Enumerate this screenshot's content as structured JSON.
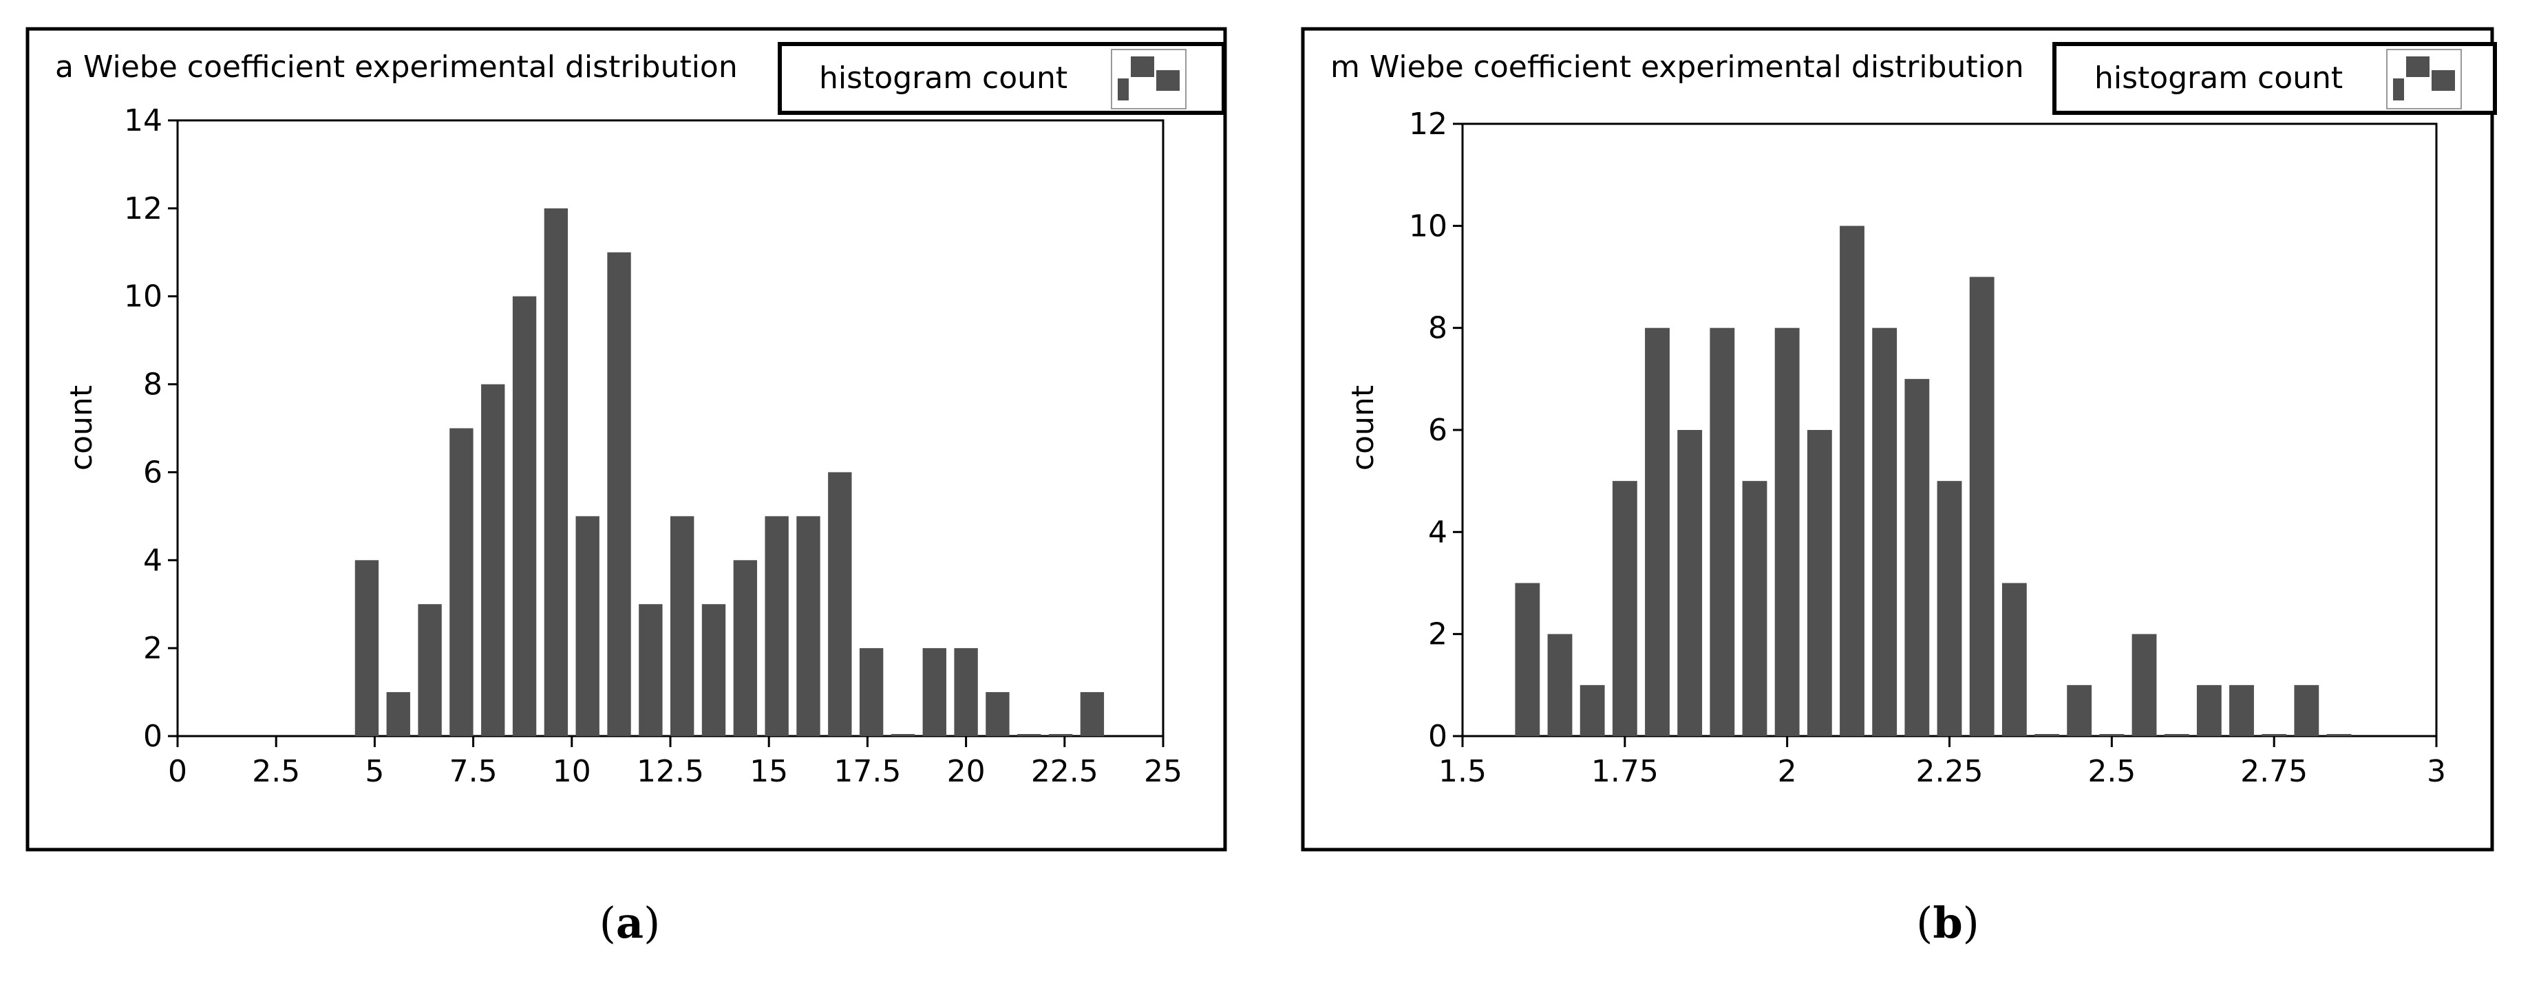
{
  "figure": {
    "panel_a_label": "a",
    "panel_b_label": "b"
  },
  "colors": {
    "bar": "#505050",
    "frame": "#000000",
    "text": "#000000"
  },
  "chart_data": [
    {
      "type": "bar",
      "title": "a Wiebe coefficient experimental distribution",
      "legend_label": "histogram count",
      "legend_icon": "histogram-icon",
      "ylabel": "count",
      "xlabel": "",
      "xlim": [
        0,
        25
      ],
      "ylim": [
        0,
        14
      ],
      "xticks": [
        0,
        2.5,
        5,
        7.5,
        10,
        12.5,
        15,
        17.5,
        20,
        22.5,
        25
      ],
      "xtick_labels": [
        "0",
        "2.5",
        "5",
        "7.5",
        "10",
        "12.5",
        "15",
        "17.5",
        "20",
        "22.5",
        "25"
      ],
      "yticks": [
        0,
        2,
        4,
        6,
        8,
        10,
        12,
        14
      ],
      "ytick_labels": [
        "0",
        "2",
        "4",
        "6",
        "8",
        "10",
        "12",
        "14"
      ],
      "bin_width": 0.8,
      "bar_width": 0.6,
      "x": [
        4.8,
        5.6,
        6.4,
        7.2,
        8.0,
        8.8,
        9.6,
        10.4,
        11.2,
        12.0,
        12.8,
        13.6,
        14.4,
        15.2,
        16.0,
        16.8,
        17.6,
        18.4,
        19.2,
        20.0,
        20.8,
        21.6,
        22.4,
        23.2
      ],
      "values": [
        4,
        1,
        3,
        7,
        8,
        10,
        12,
        5,
        11,
        3,
        5,
        3,
        4,
        5,
        5,
        6,
        2,
        0,
        2,
        2,
        1,
        0,
        0,
        1
      ]
    },
    {
      "type": "bar",
      "title": "m Wiebe coefficient experimental distribution",
      "legend_label": "histogram count",
      "legend_icon": "histogram-icon",
      "ylabel": "count",
      "xlabel": "",
      "xlim": [
        1.5,
        3
      ],
      "ylim": [
        0,
        12
      ],
      "xticks": [
        1.5,
        1.75,
        2,
        2.25,
        2.5,
        2.75,
        3
      ],
      "xtick_labels": [
        "1.5",
        "1.75",
        "2",
        "2.25",
        "2.5",
        "2.75",
        "3"
      ],
      "yticks": [
        0,
        2,
        4,
        6,
        8,
        10,
        12
      ],
      "ytick_labels": [
        "0",
        "2",
        "4",
        "6",
        "8",
        "10",
        "12"
      ],
      "bin_width": 0.05,
      "bar_width": 0.038,
      "x": [
        1.6,
        1.65,
        1.7,
        1.75,
        1.8,
        1.85,
        1.9,
        1.95,
        2.0,
        2.05,
        2.1,
        2.15,
        2.2,
        2.25,
        2.3,
        2.35,
        2.4,
        2.45,
        2.5,
        2.55,
        2.6,
        2.65,
        2.7,
        2.75,
        2.8,
        2.85
      ],
      "values": [
        3,
        2,
        1,
        5,
        8,
        6,
        8,
        5,
        8,
        6,
        10,
        8,
        7,
        5,
        9,
        3,
        0,
        1,
        0,
        2,
        0,
        1,
        1,
        0,
        1,
        0
      ]
    }
  ]
}
